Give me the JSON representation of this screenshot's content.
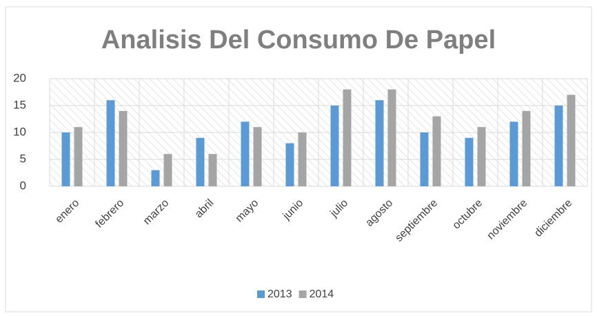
{
  "chart_data": {
    "type": "bar",
    "title": "Analisis Del Consumo De Papel",
    "categories": [
      "enero",
      "febrero",
      "marzo",
      "abril",
      "mayo",
      "junio",
      "julio",
      "agosto",
      "septiembre",
      "octubre",
      "noviembre",
      "diciembre"
    ],
    "series": [
      {
        "name": "2013",
        "color": "#5b9bd5",
        "values": [
          10,
          16,
          3,
          9,
          12,
          8,
          15,
          16,
          10,
          9,
          12,
          15
        ]
      },
      {
        "name": "2014",
        "color": "#a5a5a5",
        "values": [
          11,
          14,
          6,
          6,
          11,
          10,
          18,
          18,
          13,
          11,
          14,
          17
        ]
      }
    ],
    "ylim": [
      0,
      20
    ],
    "yticks": [
      0,
      5,
      10,
      15,
      20
    ],
    "grid": true,
    "legend": "bottom"
  }
}
